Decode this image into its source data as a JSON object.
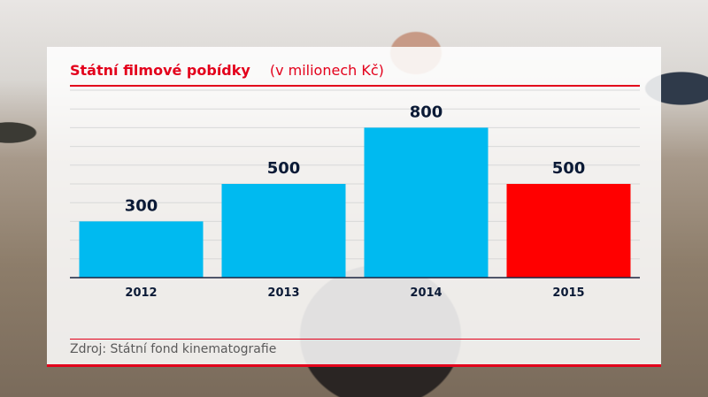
{
  "chart_data": {
    "type": "bar",
    "title": "Státní filmové pobídky",
    "subtitle": "(v milionech Kč)",
    "categories": [
      "2012",
      "2013",
      "2014",
      "2015"
    ],
    "values": [
      300,
      500,
      800,
      500
    ],
    "colors": [
      "#00baf0",
      "#00baf0",
      "#00baf0",
      "#ff0000"
    ],
    "ylim": [
      0,
      1000
    ],
    "grid": true,
    "source": "Zdroj: Státní fond kinematografie"
  },
  "theme": {
    "accent": "#e3001b",
    "bar_default": "#00baf0",
    "bar_highlight": "#ff0000"
  }
}
